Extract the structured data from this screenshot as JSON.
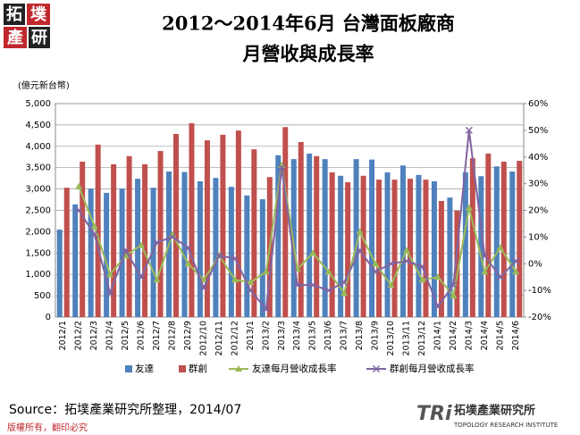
{
  "logo": {
    "chars": [
      "拓",
      "墣",
      "產",
      "研"
    ]
  },
  "chart_data": {
    "type": "bar-line",
    "title": "2012～2014年6月 台灣面板廠商",
    "subtitle": "月營收與成長率",
    "y_label": "(億元新台幣)",
    "categories": [
      "2012/1",
      "2012/2",
      "2012/3",
      "2012/4",
      "2012/5",
      "2012/6",
      "2012/7",
      "2012/8",
      "2012/9",
      "2012/10",
      "2012/11",
      "2012/12",
      "2013/1",
      "2013/2",
      "2013/3",
      "2013/4",
      "2013/5",
      "2013/6",
      "2013/7",
      "2013/8",
      "2013/9",
      "2013/10",
      "2013/11",
      "2013/12",
      "2014/1",
      "2014/2",
      "2014/3",
      "2014/4",
      "2014/5",
      "2014/6"
    ],
    "series": [
      {
        "name": "友達",
        "type": "bar",
        "color": "#4f81bd",
        "values": [
          2050,
          2640,
          3010,
          2910,
          3010,
          3240,
          3030,
          3410,
          3400,
          3180,
          3260,
          3050,
          2850,
          2760,
          3790,
          3700,
          3830,
          3700,
          3310,
          3700,
          3690,
          3390,
          3550,
          3330,
          3180,
          2800,
          3390,
          3300,
          3530,
          3410
        ]
      },
      {
        "name": "群創",
        "type": "bar",
        "color": "#c0504d",
        "values": [
          3030,
          3640,
          4040,
          3580,
          3770,
          3580,
          3890,
          4290,
          4540,
          4140,
          4270,
          4370,
          3930,
          3280,
          4450,
          4100,
          3770,
          3390,
          3160,
          3310,
          3220,
          3220,
          3240,
          3220,
          2720,
          2490,
          3720,
          3830,
          3640,
          3660
        ]
      },
      {
        "name": "友達每月營收成長率",
        "type": "line",
        "marker": "triangle",
        "axis": "y2",
        "color": "#9bbb59",
        "values": [
          null,
          29,
          14,
          -4,
          3,
          7,
          -6,
          11,
          0,
          -6,
          3,
          -6,
          -7,
          -3,
          37,
          -2,
          4,
          -3,
          -11,
          12,
          0,
          -8,
          5,
          -6,
          -5,
          -12,
          21,
          -3,
          6,
          -3
        ]
      },
      {
        "name": "群創每月營收成長率",
        "type": "line",
        "marker": "x",
        "axis": "y2",
        "color": "#8064a2",
        "values": [
          null,
          20,
          11,
          -11,
          5,
          -5,
          8,
          10,
          6,
          -9,
          3,
          2,
          -10,
          -17,
          36,
          -8,
          -8,
          -10,
          -7,
          5,
          -3,
          0,
          1,
          -1,
          -16,
          -8,
          50,
          3,
          -5,
          1
        ]
      }
    ],
    "ylim": [
      0,
      5000
    ],
    "yticks": [
      0,
      {
        "value": 500,
        "label": "500"
      },
      {
        "value": 1000,
        "label": "1,000"
      },
      {
        "value": 1500,
        "label": "1,500"
      },
      {
        "value": 2000,
        "label": "2,000"
      },
      {
        "value": 2500,
        "label": "2,500"
      },
      {
        "value": 3000,
        "label": "3,000"
      },
      {
        "value": 3500,
        "label": "3,500"
      },
      {
        "value": 4000,
        "label": "4,000"
      },
      {
        "value": 4500,
        "label": "4,500"
      },
      {
        "value": 5000,
        "label": "5,000"
      }
    ],
    "y2lim": [
      -20,
      60
    ],
    "y2ticks": [
      {
        "value": -20,
        "label": "-20%"
      },
      {
        "value": -10,
        "label": "-10%"
      },
      {
        "value": 0,
        "label": "0%"
      },
      {
        "value": 10,
        "label": "10%"
      },
      {
        "value": 20,
        "label": "20%"
      },
      {
        "value": 30,
        "label": "30%"
      },
      {
        "value": 40,
        "label": "40%"
      },
      {
        "value": 50,
        "label": "50%"
      },
      {
        "value": 60,
        "label": "60%"
      }
    ],
    "grid": true,
    "legend": "bottom"
  },
  "source": "Source：拓墣產業研究所整理，2014/07",
  "footer": {
    "copyright": "版權所有，翻印必究",
    "brand": "TRi",
    "institute": "拓墣產業研究所",
    "institute_en": "TOPOLOGY RESEARCH INSTITUTE"
  }
}
